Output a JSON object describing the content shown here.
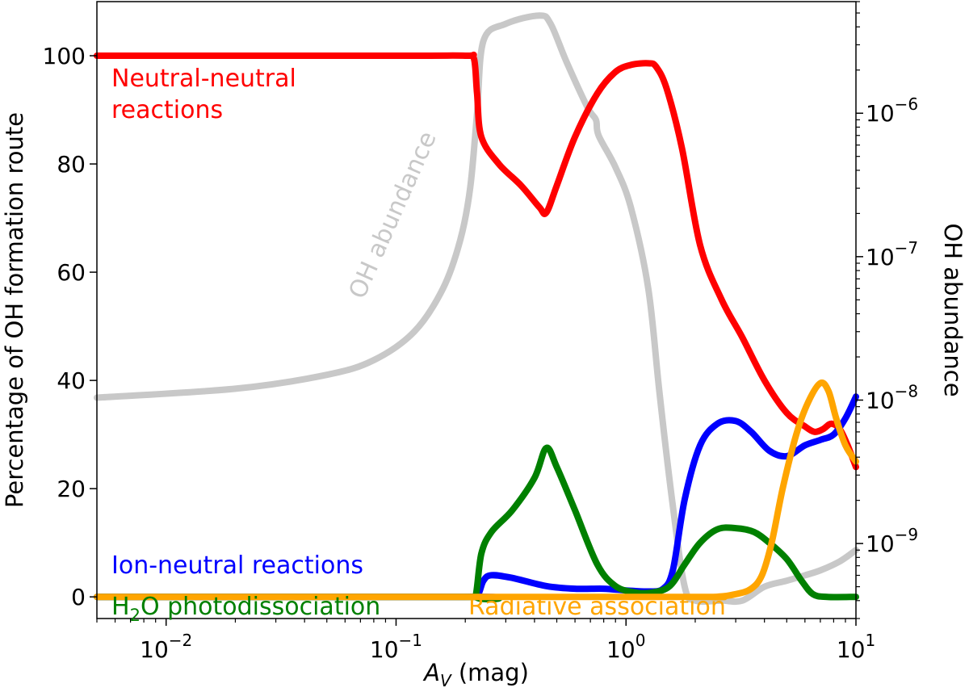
{
  "chart_data": {
    "type": "line",
    "xscale": "log",
    "xlim": [
      0.005,
      10
    ],
    "ylim": [
      -4,
      110
    ],
    "y2scale": "log",
    "y2lim": [
      3e-10,
      6e-06
    ],
    "xlabel_main": "A",
    "xlabel_sub": "V",
    "xlabel_unit": " (mag)",
    "ylabel": "Percentage of OH formation route",
    "y2label": "OH abundance",
    "x_ticks": [
      {
        "value": 0.01,
        "base": "10",
        "exp": "−2"
      },
      {
        "value": 0.1,
        "base": "10",
        "exp": "−1"
      },
      {
        "value": 1,
        "base": "10",
        "exp": "0"
      },
      {
        "value": 10,
        "base": "10",
        "exp": "1"
      }
    ],
    "y_ticks": [
      0,
      20,
      40,
      60,
      80,
      100
    ],
    "y2_ticks": [
      {
        "value": 1e-09,
        "base": "10",
        "exp": "−9"
      },
      {
        "value": 1e-08,
        "base": "10",
        "exp": "−8"
      },
      {
        "value": 1e-07,
        "base": "10",
        "exp": "−7"
      },
      {
        "value": 1e-06,
        "base": "10",
        "exp": "−6"
      }
    ],
    "series": [
      {
        "name": "OH abundance",
        "axis": "right",
        "color": "#c8c8c8",
        "x": [
          0.005,
          0.02,
          0.05,
          0.08,
          0.12,
          0.16,
          0.19,
          0.21,
          0.225,
          0.24,
          0.3,
          0.42,
          0.47,
          0.55,
          0.68,
          0.74,
          0.76,
          0.9,
          1.05,
          1.25,
          1.4,
          1.6,
          1.8,
          2.0,
          2.6,
          3.2,
          4.0,
          5.0,
          6.0,
          7.0,
          8.5,
          10
        ],
        "y": [
          1.04e-08,
          1.2e-08,
          1.5e-08,
          1.9e-08,
          3e-08,
          6e-08,
          1.3e-07,
          3e-07,
          1e-06,
          3.2e-06,
          4.2e-06,
          4.8e-06,
          4.2e-06,
          2.3e-06,
          1.1e-06,
          9e-07,
          7e-07,
          4.2e-07,
          2.2e-07,
          6e-08,
          1.1e-08,
          1.8e-09,
          5e-10,
          4e-10,
          4e-10,
          4e-10,
          5e-10,
          5.5e-10,
          6e-10,
          6.5e-10,
          7.5e-10,
          9e-10
        ]
      },
      {
        "name": "Neutral-neutral reactions",
        "axis": "left",
        "color": "#ff0000",
        "x": [
          0.005,
          0.1,
          0.2,
          0.218,
          0.225,
          0.235,
          0.28,
          0.35,
          0.42,
          0.45,
          0.5,
          0.6,
          0.75,
          0.9,
          1.05,
          1.25,
          1.35,
          1.5,
          1.75,
          2.1,
          2.6,
          3.2,
          4.0,
          5.0,
          6.0,
          6.6,
          7.2,
          7.8,
          8.5,
          9.2,
          10
        ],
        "y": [
          100,
          100,
          100,
          99.5,
          93,
          85,
          80,
          76,
          72,
          71,
          76,
          85,
          93,
          97,
          98.3,
          98.6,
          98,
          94,
          83,
          65,
          55,
          48,
          40,
          34,
          31.5,
          30.5,
          31,
          32,
          31,
          28,
          24
        ]
      },
      {
        "name": "Ion-neutral reactions",
        "axis": "left",
        "color": "#0000ff",
        "x": [
          0.005,
          0.2,
          0.225,
          0.24,
          0.26,
          0.32,
          0.45,
          0.6,
          0.8,
          1.0,
          1.25,
          1.45,
          1.6,
          1.8,
          2.1,
          2.5,
          3.0,
          3.5,
          4.2,
          5.0,
          6.0,
          7.0,
          8.0,
          9.0,
          10
        ],
        "y": [
          0,
          0,
          0.2,
          3,
          4,
          3.5,
          2,
          1.5,
          1.5,
          1.2,
          1,
          1.5,
          5,
          18,
          28,
          32,
          32.5,
          30.5,
          27,
          26,
          28,
          29,
          30,
          33,
          37
        ]
      },
      {
        "name": "H2O photodissociation",
        "axis": "left",
        "color": "#008000",
        "x": [
          0.005,
          0.21,
          0.222,
          0.235,
          0.26,
          0.32,
          0.4,
          0.45,
          0.5,
          0.6,
          0.75,
          0.9,
          1.1,
          1.3,
          1.55,
          1.8,
          2.1,
          2.5,
          3.0,
          3.6,
          4.2,
          5.0,
          5.8,
          6.5,
          7.5,
          10
        ],
        "y": [
          0,
          0,
          0.2,
          8,
          12,
          16,
          22,
          27.5,
          24,
          16,
          6,
          2,
          0.8,
          0.8,
          2,
          6,
          10,
          12.5,
          12.7,
          12,
          10,
          7,
          3,
          0.5,
          0,
          0
        ]
      },
      {
        "name": "Radiative association",
        "axis": "left",
        "color": "#ffa500",
        "x": [
          0.005,
          1.5,
          2.4,
          3.0,
          3.5,
          3.9,
          4.3,
          4.8,
          5.5,
          6.2,
          7.0,
          7.6,
          8.2,
          9.0,
          10
        ],
        "y": [
          0,
          0,
          0,
          0.5,
          1.5,
          4,
          10,
          20,
          30,
          36,
          39.5,
          38,
          33,
          28,
          25
        ]
      }
    ],
    "annotations": [
      {
        "text_line1": "Neutral-neutral",
        "text_line2": "reactions",
        "color": "#ff0000"
      },
      {
        "text": "Ion-neutral reactions",
        "color": "#0000ff"
      },
      {
        "text_before": "H",
        "text_sub": "2",
        "text_after": "O photodissociation",
        "color": "#008000"
      },
      {
        "text": "Radiative association",
        "color": "#ffa500"
      },
      {
        "text": "OH abundance",
        "color": "#c8c8c8"
      }
    ]
  }
}
